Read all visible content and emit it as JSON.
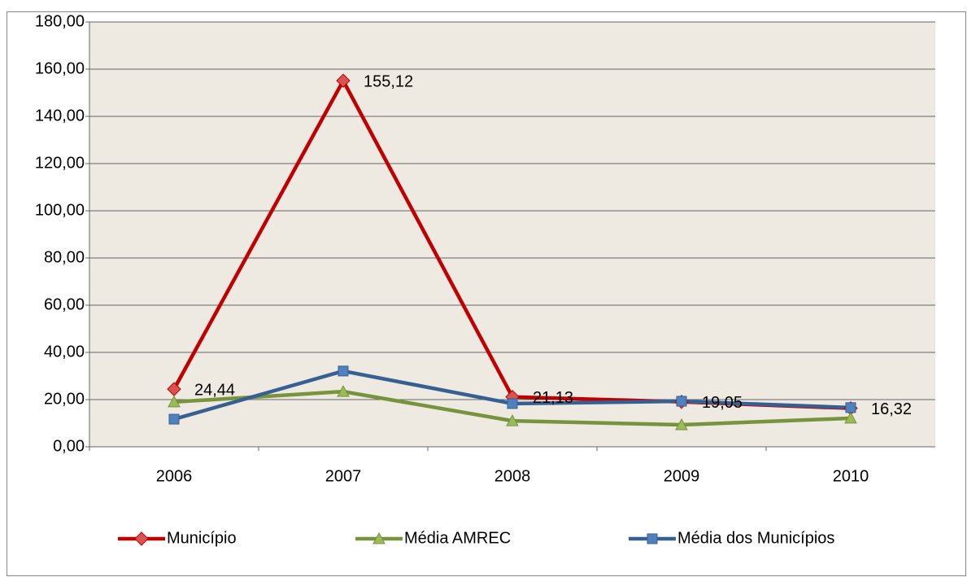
{
  "chart_data": {
    "type": "line",
    "categories": [
      "2006",
      "2007",
      "2008",
      "2009",
      "2010"
    ],
    "series": [
      {
        "name": "Município",
        "color": "#c00000",
        "marker": "diamond",
        "values": [
          24.44,
          155.12,
          21.13,
          19.05,
          16.32
        ],
        "value_labels": [
          "24,44",
          "155,12",
          "21,13",
          "19,05",
          "16,32"
        ]
      },
      {
        "name": "Média AMREC",
        "color": "#77933c",
        "marker": "triangle",
        "values": [
          19.0,
          23.4,
          11.0,
          9.3,
          12.1
        ]
      },
      {
        "name": "Média dos Municípios",
        "color": "#376092",
        "marker": "square",
        "values": [
          11.7,
          32.1,
          18.3,
          19.3,
          16.6
        ]
      }
    ],
    "ylim": [
      0,
      180
    ],
    "yticks": [
      {
        "value": 0,
        "label": "0,00"
      },
      {
        "value": 20,
        "label": "20,00"
      },
      {
        "value": 40,
        "label": "40,00"
      },
      {
        "value": 60,
        "label": "60,00"
      },
      {
        "value": 80,
        "label": "80,00"
      },
      {
        "value": 100,
        "label": "100,00"
      },
      {
        "value": 120,
        "label": "120,00"
      },
      {
        "value": 140,
        "label": "140,00"
      },
      {
        "value": 160,
        "label": "160,00"
      },
      {
        "value": 180,
        "label": "180,00"
      }
    ],
    "grid": true,
    "legend": "bottom"
  }
}
